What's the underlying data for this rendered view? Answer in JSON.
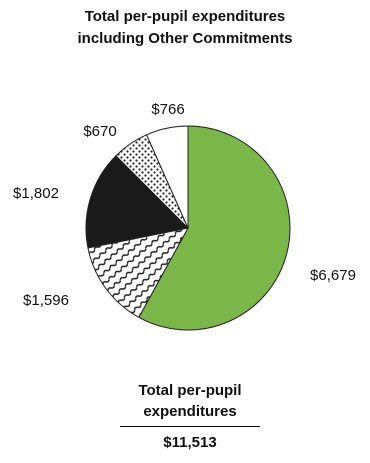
{
  "title_lines": [
    "Total per-pupil expenditures",
    "including Other Commitments"
  ],
  "chart_data": {
    "type": "pie",
    "title": "Total per-pupil expenditures including Other Commitments",
    "slices": [
      {
        "label": "$6,679",
        "value": 6679,
        "fill": "green-solid"
      },
      {
        "label": "$1,596",
        "value": 1596,
        "fill": "diagonal-wave-hatch"
      },
      {
        "label": "$1,802",
        "value": 1802,
        "fill": "black-solid"
      },
      {
        "label": "$670",
        "value": 670,
        "fill": "dotted"
      },
      {
        "label": "$766",
        "value": 766,
        "fill": "white"
      }
    ],
    "start": "12 o'clock",
    "direction": "clockwise"
  },
  "total": {
    "label_lines": [
      "Total per-pupil",
      "expenditures"
    ],
    "value": "$11,513"
  },
  "colors": {
    "green": "#7ab648",
    "black": "#1a1a1a",
    "outline": "#222222",
    "background": "#ffffff"
  }
}
